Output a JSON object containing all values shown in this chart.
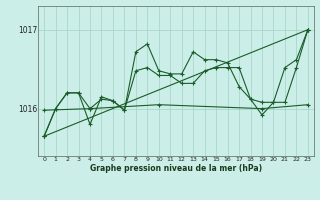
{
  "xlabel": "Graphe pression niveau de la mer (hPa)",
  "background_color": "#cceee8",
  "grid_color": "#99ccbb",
  "line_color": "#1a5c2a",
  "x_ticks": [
    0,
    1,
    2,
    3,
    4,
    5,
    6,
    7,
    8,
    9,
    10,
    11,
    12,
    13,
    14,
    15,
    16,
    17,
    18,
    19,
    20,
    21,
    22,
    23
  ],
  "ylim": [
    1015.4,
    1017.3
  ],
  "yticks": [
    1016,
    1017
  ],
  "line_spiky": [
    1015.65,
    1016.0,
    1016.2,
    1016.2,
    1015.8,
    1016.15,
    1016.1,
    1015.98,
    1016.72,
    1016.82,
    1016.48,
    1016.44,
    1016.44,
    1016.72,
    1016.62,
    1016.62,
    1016.58,
    1016.28,
    1016.12,
    1015.92,
    1016.08,
    1016.52,
    1016.62,
    1017.0
  ],
  "line_smooth": [
    1015.65,
    1016.0,
    1016.2,
    1016.2,
    1016.0,
    1016.12,
    1016.1,
    1015.98,
    1016.48,
    1016.52,
    1016.42,
    1016.42,
    1016.32,
    1016.32,
    1016.48,
    1016.52,
    1016.52,
    1016.52,
    1016.12,
    1016.08,
    1016.08,
    1016.08,
    1016.52,
    1017.0
  ],
  "line_trend_x": [
    0,
    23
  ],
  "line_trend_y": [
    1015.65,
    1017.0
  ],
  "line_flat_x": [
    0,
    4,
    10,
    19,
    23
  ],
  "line_flat_y": [
    1015.98,
    1016.0,
    1016.05,
    1016.0,
    1016.05
  ],
  "spine_color": "#556655",
  "tick_fontsize": 4.5,
  "xlabel_fontsize": 5.5,
  "ytick_fontsize": 5.5,
  "lw": 0.8,
  "ms": 2.2
}
